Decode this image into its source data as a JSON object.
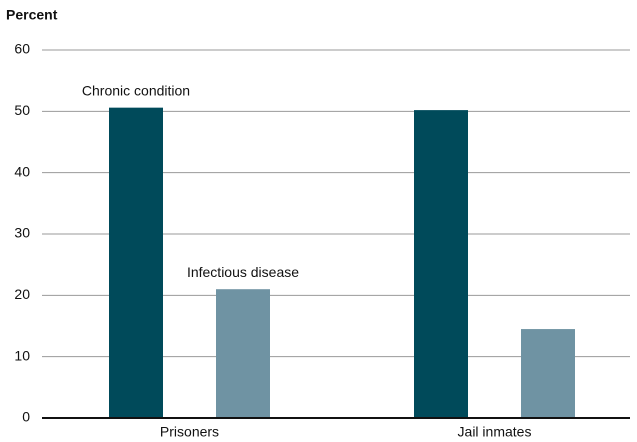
{
  "chart_data": {
    "type": "bar",
    "y_label": "Percent",
    "categories": [
      "Prisoners",
      "Jail inmates"
    ],
    "series": [
      {
        "name": "Chronic condition",
        "color": "#004a5a",
        "values": [
          50.6,
          50.2
        ]
      },
      {
        "name": "Infectious disease",
        "color": "#6f93a3",
        "values": [
          21,
          14.5
        ]
      }
    ],
    "ylim": [
      0,
      60
    ],
    "yticks": [
      0,
      10,
      20,
      30,
      40,
      50,
      60
    ],
    "grid": true
  }
}
